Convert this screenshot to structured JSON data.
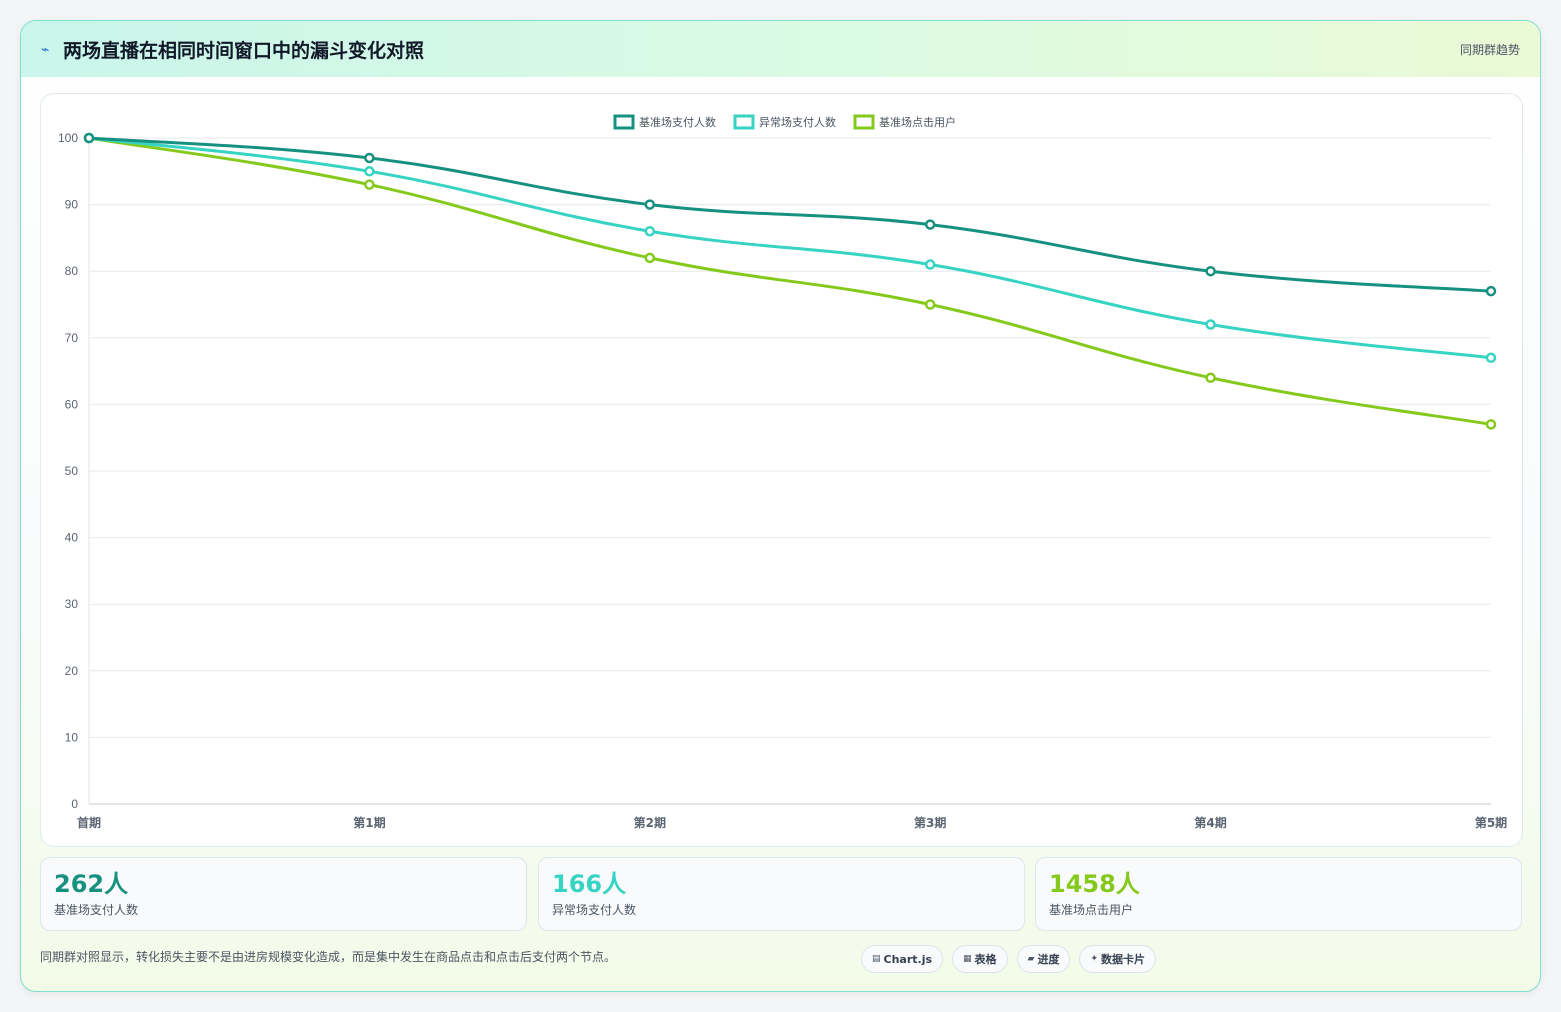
{
  "header": {
    "title": "两场直播在相同时间窗口中的漏斗变化对照",
    "badge": "同期群趋势",
    "icon": "chart-line-icon"
  },
  "colors": {
    "baseline_pay": "#17917f",
    "anomaly_pay": "#37d3c3",
    "baseline_click": "#86c91d"
  },
  "chart_data": {
    "type": "line",
    "categories": [
      "首期",
      "第1期",
      "第2期",
      "第3期",
      "第4期",
      "第5期"
    ],
    "series": [
      {
        "name": "基准场支付人数",
        "values": [
          100,
          97,
          90,
          87,
          80,
          77
        ],
        "color": "#17917f"
      },
      {
        "name": "异常场支付人数",
        "values": [
          100,
          95,
          86,
          81,
          72,
          67
        ],
        "color": "#37d3c3"
      },
      {
        "name": "基准场点击用户",
        "values": [
          100,
          93,
          82,
          75,
          64,
          57
        ],
        "color": "#86c91d"
      }
    ],
    "ylim": [
      0,
      100
    ],
    "yticks": [
      0,
      10,
      20,
      30,
      40,
      50,
      60,
      70,
      80,
      90,
      100
    ],
    "grid": true,
    "legend": "top-center"
  },
  "stats": [
    {
      "value": "262人",
      "label": "基准场支付人数",
      "color": "#17917f"
    },
    {
      "value": "166人",
      "label": "异常场支付人数",
      "color": "#37d3c3"
    },
    {
      "value": "1458人",
      "label": "基准场点击用户",
      "color": "#86c91d"
    }
  ],
  "footer": {
    "note": "同期群对照显示，转化损失主要不是由进房规模变化造成，而是集中发生在商品点击和点击后支付两个节点。"
  },
  "pills": [
    {
      "icon": "▤",
      "label": "Chart.js"
    },
    {
      "icon": "▦",
      "label": "表格"
    },
    {
      "icon": "▰",
      "label": "进度"
    },
    {
      "icon": "✦",
      "label": "数据卡片"
    }
  ]
}
